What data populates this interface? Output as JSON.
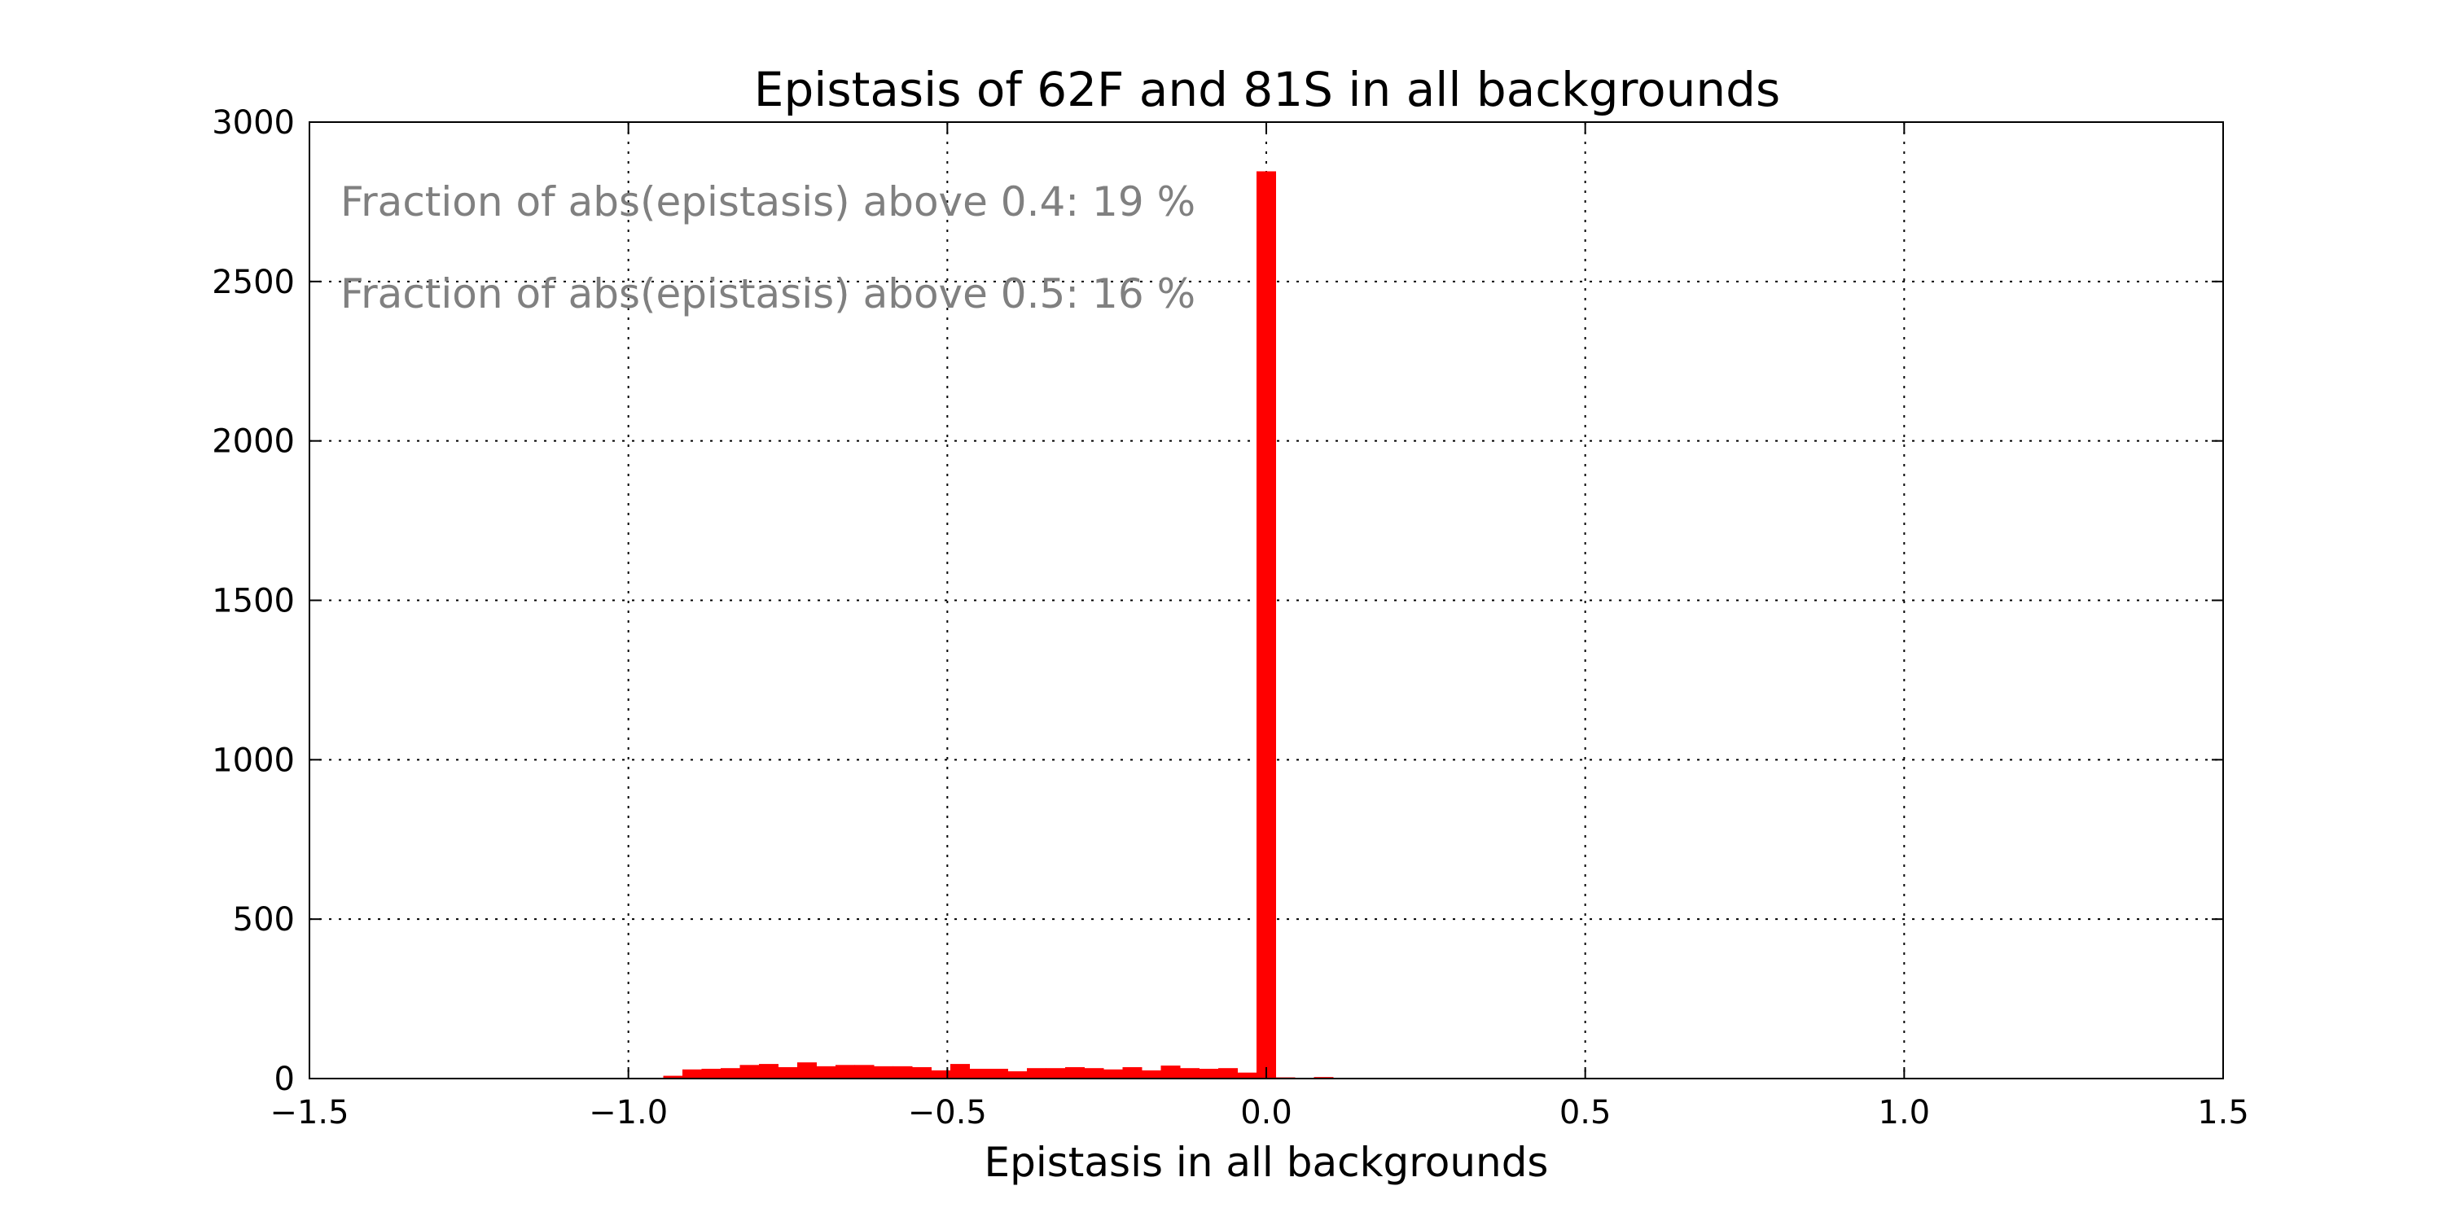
{
  "chart_data": {
    "type": "bar",
    "title": "Epistasis of 62F and 81S in all backgrounds",
    "xlabel": "Epistasis in all backgrounds",
    "ylabel": "",
    "xlim": [
      -1.5,
      1.5
    ],
    "ylim": [
      0,
      3000
    ],
    "x_ticks": [
      "−1.5",
      "−1.0",
      "−0.5",
      "0.0",
      "0.5",
      "1.0",
      "1.5"
    ],
    "y_ticks": [
      "0",
      "500",
      "1000",
      "1500",
      "2000",
      "2500",
      "3000"
    ],
    "grid": true,
    "bar_color": "#ff0000",
    "annotation_color": "#808080",
    "bin_width": 0.03,
    "bins": [
      {
        "x": -0.93,
        "value": 8
      },
      {
        "x": -0.9,
        "value": 28
      },
      {
        "x": -0.87,
        "value": 30
      },
      {
        "x": -0.84,
        "value": 32
      },
      {
        "x": -0.81,
        "value": 42
      },
      {
        "x": -0.78,
        "value": 45
      },
      {
        "x": -0.75,
        "value": 35
      },
      {
        "x": -0.72,
        "value": 50
      },
      {
        "x": -0.69,
        "value": 38
      },
      {
        "x": -0.66,
        "value": 42
      },
      {
        "x": -0.63,
        "value": 42
      },
      {
        "x": -0.6,
        "value": 38
      },
      {
        "x": -0.57,
        "value": 38
      },
      {
        "x": -0.54,
        "value": 35
      },
      {
        "x": -0.51,
        "value": 25
      },
      {
        "x": -0.48,
        "value": 45
      },
      {
        "x": -0.45,
        "value": 30
      },
      {
        "x": -0.42,
        "value": 30
      },
      {
        "x": -0.39,
        "value": 22
      },
      {
        "x": -0.36,
        "value": 32
      },
      {
        "x": -0.33,
        "value": 32
      },
      {
        "x": -0.3,
        "value": 35
      },
      {
        "x": -0.27,
        "value": 32
      },
      {
        "x": -0.24,
        "value": 28
      },
      {
        "x": -0.21,
        "value": 35
      },
      {
        "x": -0.18,
        "value": 25
      },
      {
        "x": -0.15,
        "value": 40
      },
      {
        "x": -0.12,
        "value": 32
      },
      {
        "x": -0.09,
        "value": 30
      },
      {
        "x": -0.06,
        "value": 32
      },
      {
        "x": -0.03,
        "value": 18
      },
      {
        "x": 0.0,
        "value": 2845
      },
      {
        "x": 0.03,
        "value": 3
      },
      {
        "x": 0.09,
        "value": 4
      }
    ],
    "annotations": [
      "Fraction of abs(epistasis) above 0.4: 19 %",
      "Fraction of abs(epistasis) above 0.5: 16 %"
    ]
  }
}
